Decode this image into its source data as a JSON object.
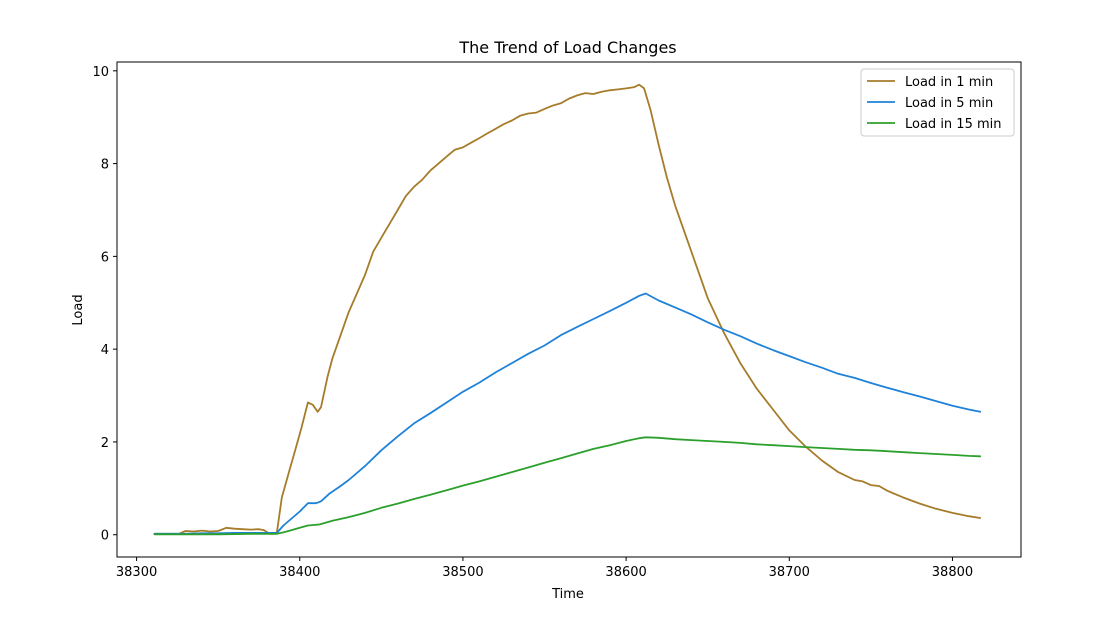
{
  "chart_data": {
    "type": "line",
    "title": "The Trend of Load Changes",
    "xlabel": "Time",
    "ylabel": "Load",
    "xlim": [
      38288,
      38842
    ],
    "ylim": [
      -0.48,
      10.19
    ],
    "xticks": [
      38300,
      38400,
      38500,
      38600,
      38700,
      38800
    ],
    "yticks": [
      0,
      2,
      4,
      6,
      8,
      10
    ],
    "legend_position": "top-right",
    "series": [
      {
        "name": "Load in 1 min",
        "color": "#A67C2A",
        "points": [
          [
            38311,
            0.02
          ],
          [
            38320,
            0.02
          ],
          [
            38326,
            0.02
          ],
          [
            38330,
            0.08
          ],
          [
            38335,
            0.07
          ],
          [
            38340,
            0.09
          ],
          [
            38345,
            0.07
          ],
          [
            38350,
            0.08
          ],
          [
            38355,
            0.15
          ],
          [
            38360,
            0.13
          ],
          [
            38365,
            0.12
          ],
          [
            38370,
            0.11
          ],
          [
            38375,
            0.12
          ],
          [
            38378,
            0.1
          ],
          [
            38381,
            0.03
          ],
          [
            38383,
            0.02
          ],
          [
            38386,
            0.05
          ],
          [
            38389,
            0.8
          ],
          [
            38393,
            1.3
          ],
          [
            38397,
            1.8
          ],
          [
            38401,
            2.3
          ],
          [
            38405,
            2.85
          ],
          [
            38408,
            2.8
          ],
          [
            38411,
            2.65
          ],
          [
            38413,
            2.75
          ],
          [
            38417,
            3.4
          ],
          [
            38420,
            3.8
          ],
          [
            38425,
            4.3
          ],
          [
            38430,
            4.8
          ],
          [
            38435,
            5.2
          ],
          [
            38440,
            5.6
          ],
          [
            38445,
            6.1
          ],
          [
            38450,
            6.4
          ],
          [
            38455,
            6.7
          ],
          [
            38460,
            7.0
          ],
          [
            38465,
            7.3
          ],
          [
            38470,
            7.5
          ],
          [
            38475,
            7.65
          ],
          [
            38480,
            7.85
          ],
          [
            38485,
            8.0
          ],
          [
            38490,
            8.15
          ],
          [
            38495,
            8.3
          ],
          [
            38500,
            8.35
          ],
          [
            38505,
            8.45
          ],
          [
            38510,
            8.55
          ],
          [
            38515,
            8.65
          ],
          [
            38520,
            8.75
          ],
          [
            38525,
            8.85
          ],
          [
            38530,
            8.93
          ],
          [
            38535,
            9.03
          ],
          [
            38540,
            9.08
          ],
          [
            38545,
            9.1
          ],
          [
            38550,
            9.18
          ],
          [
            38555,
            9.25
          ],
          [
            38560,
            9.3
          ],
          [
            38565,
            9.4
          ],
          [
            38570,
            9.47
          ],
          [
            38575,
            9.52
          ],
          [
            38580,
            9.5
          ],
          [
            38585,
            9.55
          ],
          [
            38590,
            9.58
          ],
          [
            38595,
            9.6
          ],
          [
            38600,
            9.62
          ],
          [
            38605,
            9.65
          ],
          [
            38608,
            9.7
          ],
          [
            38611,
            9.62
          ],
          [
            38615,
            9.15
          ],
          [
            38620,
            8.4
          ],
          [
            38625,
            7.7
          ],
          [
            38630,
            7.1
          ],
          [
            38640,
            6.1
          ],
          [
            38650,
            5.1
          ],
          [
            38660,
            4.35
          ],
          [
            38670,
            3.7
          ],
          [
            38680,
            3.15
          ],
          [
            38690,
            2.7
          ],
          [
            38700,
            2.25
          ],
          [
            38710,
            1.9
          ],
          [
            38720,
            1.6
          ],
          [
            38730,
            1.35
          ],
          [
            38740,
            1.18
          ],
          [
            38745,
            1.15
          ],
          [
            38750,
            1.07
          ],
          [
            38755,
            1.05
          ],
          [
            38760,
            0.95
          ],
          [
            38770,
            0.8
          ],
          [
            38780,
            0.67
          ],
          [
            38790,
            0.56
          ],
          [
            38800,
            0.47
          ],
          [
            38810,
            0.4
          ],
          [
            38817,
            0.36
          ]
        ]
      },
      {
        "name": "Load in 5 min",
        "color": "#1F82D9",
        "points": [
          [
            38311,
            0.02
          ],
          [
            38320,
            0.02
          ],
          [
            38330,
            0.02
          ],
          [
            38340,
            0.03
          ],
          [
            38350,
            0.03
          ],
          [
            38360,
            0.04
          ],
          [
            38370,
            0.04
          ],
          [
            38380,
            0.04
          ],
          [
            38386,
            0.04
          ],
          [
            38390,
            0.2
          ],
          [
            38395,
            0.35
          ],
          [
            38400,
            0.5
          ],
          [
            38405,
            0.68
          ],
          [
            38410,
            0.68
          ],
          [
            38413,
            0.72
          ],
          [
            38418,
            0.88
          ],
          [
            38425,
            1.05
          ],
          [
            38430,
            1.18
          ],
          [
            38440,
            1.48
          ],
          [
            38450,
            1.82
          ],
          [
            38460,
            2.12
          ],
          [
            38470,
            2.4
          ],
          [
            38480,
            2.62
          ],
          [
            38490,
            2.85
          ],
          [
            38500,
            3.08
          ],
          [
            38510,
            3.28
          ],
          [
            38520,
            3.5
          ],
          [
            38530,
            3.7
          ],
          [
            38540,
            3.9
          ],
          [
            38550,
            4.08
          ],
          [
            38560,
            4.3
          ],
          [
            38570,
            4.48
          ],
          [
            38580,
            4.65
          ],
          [
            38590,
            4.82
          ],
          [
            38600,
            5.0
          ],
          [
            38608,
            5.15
          ],
          [
            38612,
            5.2
          ],
          [
            38620,
            5.05
          ],
          [
            38630,
            4.9
          ],
          [
            38640,
            4.75
          ],
          [
            38650,
            4.58
          ],
          [
            38660,
            4.42
          ],
          [
            38670,
            4.28
          ],
          [
            38680,
            4.12
          ],
          [
            38690,
            3.98
          ],
          [
            38700,
            3.85
          ],
          [
            38710,
            3.72
          ],
          [
            38720,
            3.6
          ],
          [
            38730,
            3.47
          ],
          [
            38740,
            3.38
          ],
          [
            38750,
            3.27
          ],
          [
            38760,
            3.17
          ],
          [
            38770,
            3.07
          ],
          [
            38780,
            2.98
          ],
          [
            38790,
            2.88
          ],
          [
            38800,
            2.78
          ],
          [
            38810,
            2.7
          ],
          [
            38817,
            2.65
          ]
        ]
      },
      {
        "name": "Load in 15 min",
        "color": "#2CA02C",
        "points": [
          [
            38311,
            0.01
          ],
          [
            38330,
            0.01
          ],
          [
            38350,
            0.01
          ],
          [
            38370,
            0.02
          ],
          [
            38386,
            0.02
          ],
          [
            38390,
            0.05
          ],
          [
            38395,
            0.1
          ],
          [
            38400,
            0.15
          ],
          [
            38405,
            0.2
          ],
          [
            38412,
            0.22
          ],
          [
            38420,
            0.3
          ],
          [
            38430,
            0.38
          ],
          [
            38440,
            0.47
          ],
          [
            38450,
            0.58
          ],
          [
            38460,
            0.67
          ],
          [
            38470,
            0.77
          ],
          [
            38480,
            0.86
          ],
          [
            38490,
            0.96
          ],
          [
            38500,
            1.06
          ],
          [
            38510,
            1.15
          ],
          [
            38520,
            1.25
          ],
          [
            38530,
            1.35
          ],
          [
            38540,
            1.45
          ],
          [
            38550,
            1.55
          ],
          [
            38560,
            1.65
          ],
          [
            38570,
            1.75
          ],
          [
            38580,
            1.85
          ],
          [
            38590,
            1.93
          ],
          [
            38600,
            2.02
          ],
          [
            38608,
            2.08
          ],
          [
            38612,
            2.1
          ],
          [
            38620,
            2.09
          ],
          [
            38630,
            2.06
          ],
          [
            38640,
            2.04
          ],
          [
            38650,
            2.02
          ],
          [
            38660,
            2.0
          ],
          [
            38670,
            1.98
          ],
          [
            38680,
            1.95
          ],
          [
            38690,
            1.93
          ],
          [
            38700,
            1.91
          ],
          [
            38710,
            1.89
          ],
          [
            38720,
            1.87
          ],
          [
            38730,
            1.85
          ],
          [
            38740,
            1.83
          ],
          [
            38750,
            1.82
          ],
          [
            38760,
            1.8
          ],
          [
            38770,
            1.78
          ],
          [
            38780,
            1.76
          ],
          [
            38790,
            1.74
          ],
          [
            38800,
            1.72
          ],
          [
            38810,
            1.7
          ],
          [
            38817,
            1.69
          ]
        ]
      }
    ]
  }
}
